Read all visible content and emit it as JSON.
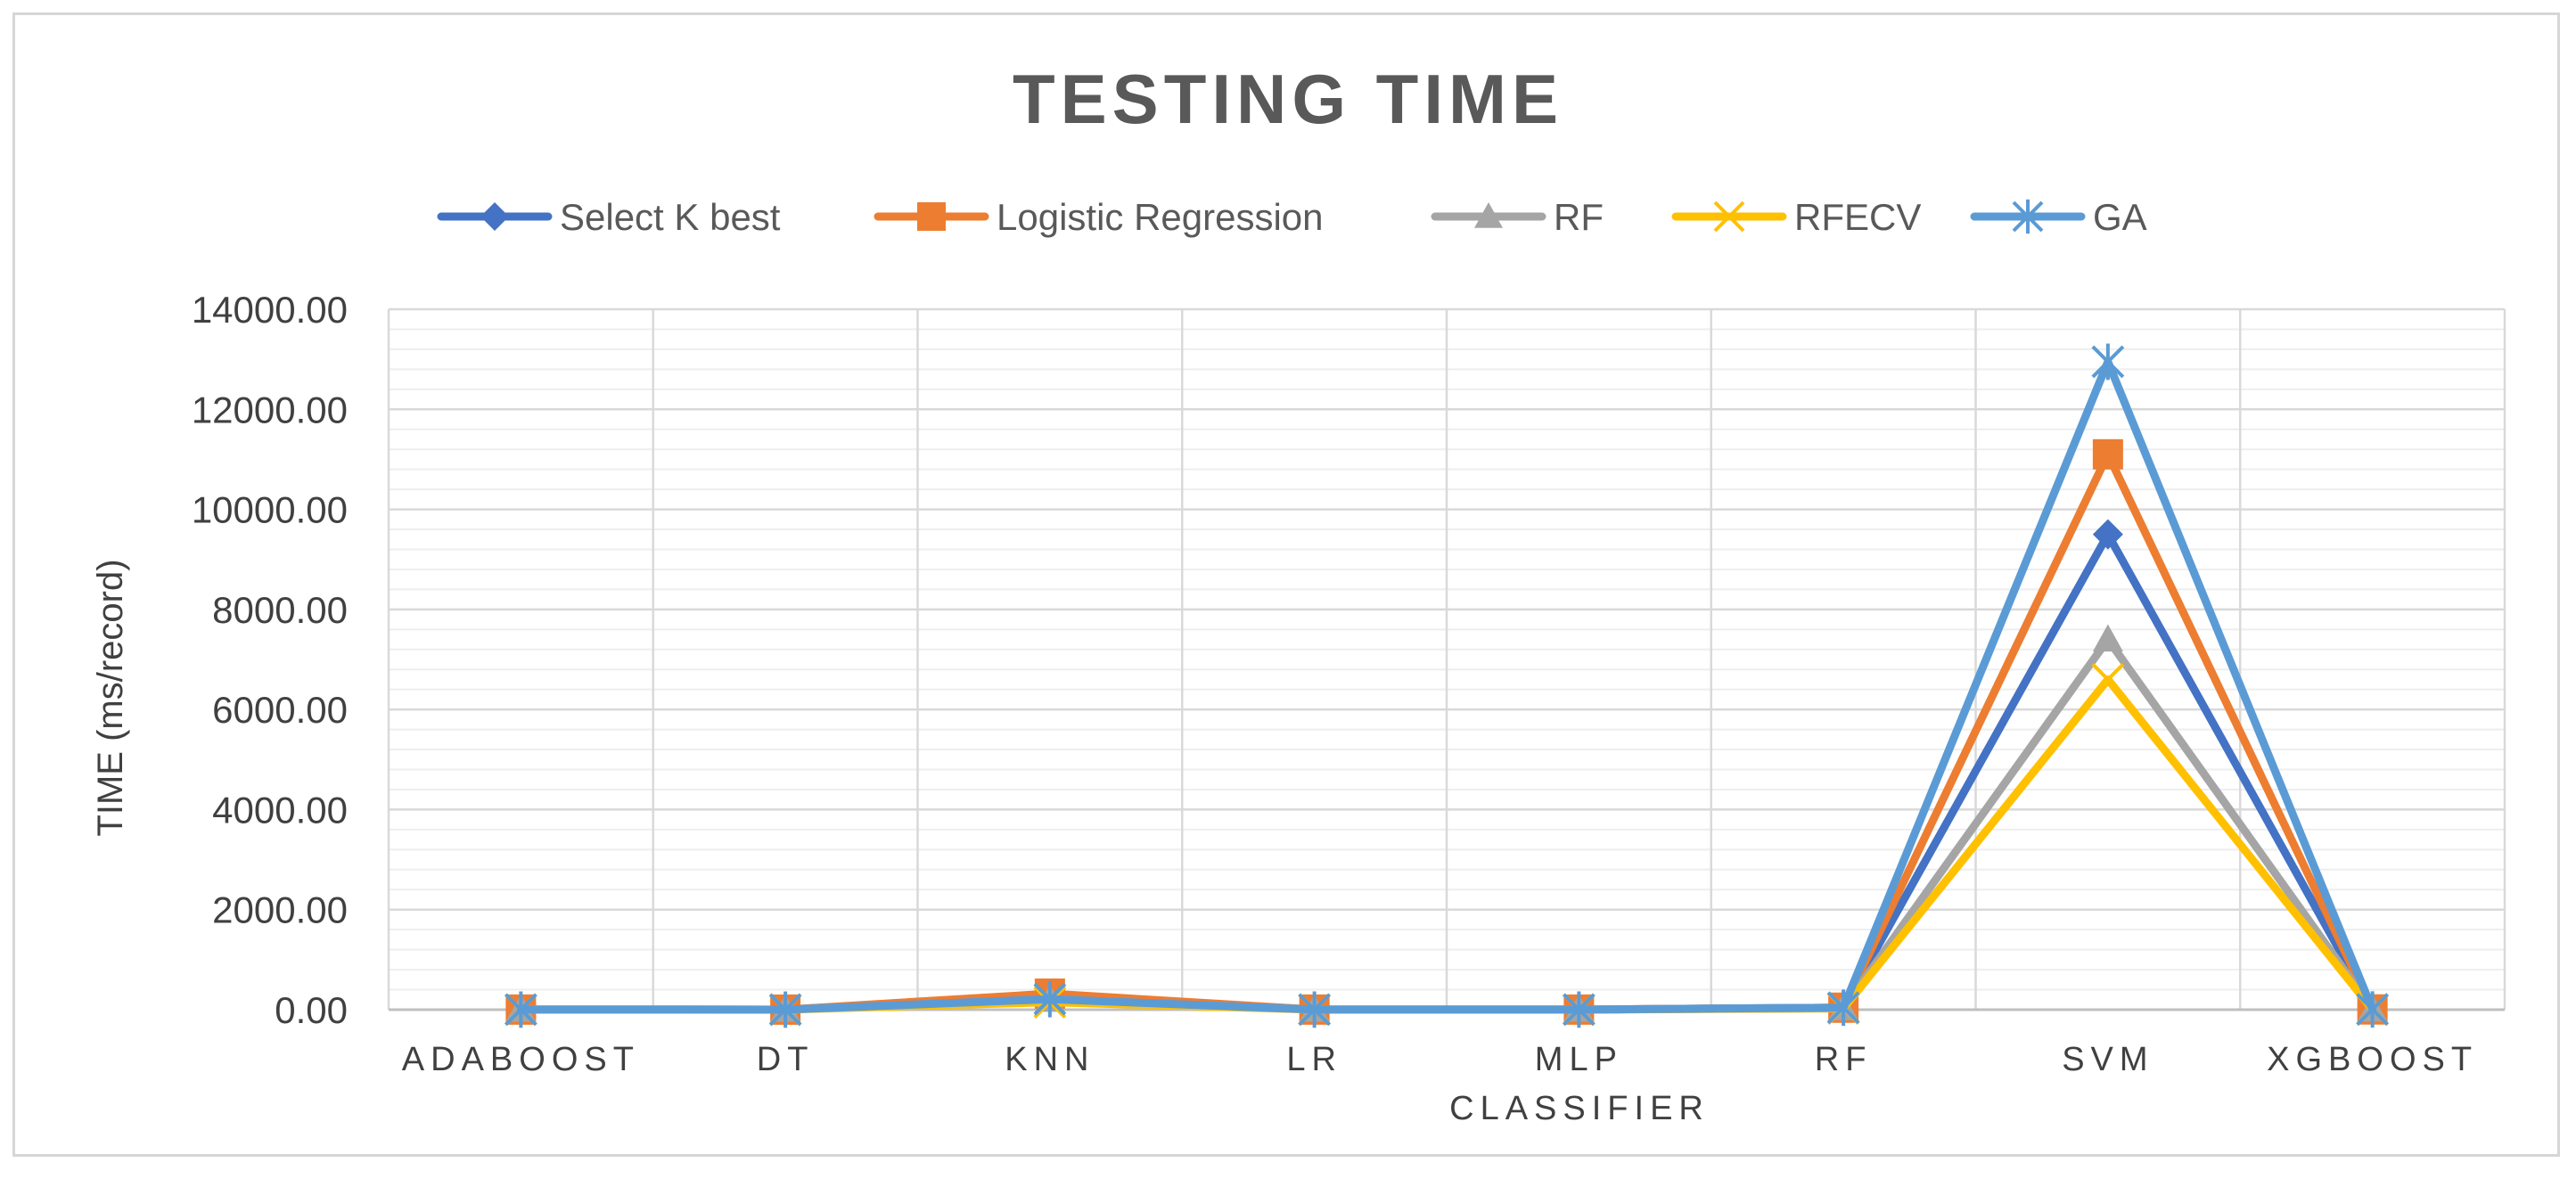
{
  "chart_data": {
    "type": "line",
    "title": "TESTING TIME",
    "xlabel": "CLASSIFIER",
    "ylabel": "TIME (ms/record)",
    "categories": [
      "ADABOOST",
      "DT",
      "KNN",
      "LR",
      "MLP",
      "RF",
      "SVM",
      "XGBOOST"
    ],
    "ylim": [
      0,
      14000
    ],
    "yticks": [
      "0.00",
      "2000.00",
      "4000.00",
      "6000.00",
      "8000.00",
      "10000.00",
      "12000.00",
      "14000.00"
    ],
    "grid": true,
    "legend_position": "top",
    "series": [
      {
        "name": "Select K best",
        "color": "#4472c4",
        "marker": "diamond",
        "values": [
          2,
          1,
          280,
          2,
          2,
          40,
          9500,
          5
        ]
      },
      {
        "name": "Logistic Regression",
        "color": "#ed7d31",
        "marker": "square",
        "values": [
          2,
          1,
          320,
          2,
          2,
          40,
          11100,
          5
        ]
      },
      {
        "name": "RF",
        "color": "#a5a5a5",
        "marker": "triangle",
        "values": [
          2,
          1,
          200,
          2,
          2,
          30,
          7400,
          5
        ]
      },
      {
        "name": "RFECV",
        "color": "#ffc000",
        "marker": "x",
        "values": [
          2,
          1,
          150,
          2,
          2,
          25,
          6600,
          5
        ]
      },
      {
        "name": "GA",
        "color": "#5b9bd5",
        "marker": "asterisk",
        "values": [
          2,
          1,
          210,
          2,
          2,
          40,
          12950,
          5
        ]
      }
    ]
  }
}
